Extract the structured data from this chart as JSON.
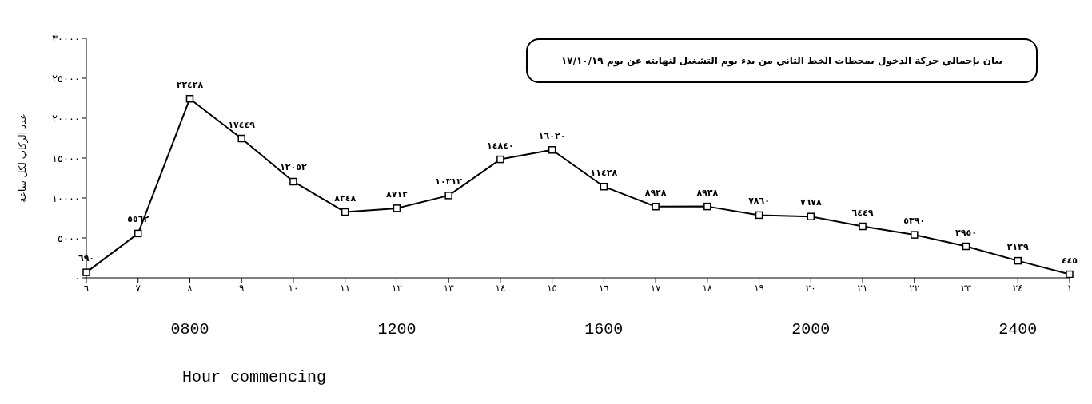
{
  "chart_data": {
    "type": "line",
    "title": "بيان بإجمالي حركة الدخول بمحطات الخط الثاني من بدء يوم التشغيل لنهايته عن يوم ١٧/١٠/١٩",
    "ylabel": "عدد الركاب لكل ساعة",
    "x2label": "Hour commencing",
    "categories": [
      "٦",
      "٧",
      "٨",
      "٩",
      "١٠",
      "١١",
      "١٢",
      "١٣",
      "١٤",
      "١٥",
      "١٦",
      "١٧",
      "١٨",
      "١٩",
      "٢٠",
      "٢١",
      "٢٢",
      "٢٣",
      "٢٤",
      "١"
    ],
    "values": [
      690,
      5562,
      22428,
      17449,
      12052,
      8248,
      8712,
      10312,
      14840,
      16020,
      11428,
      8928,
      8938,
      7860,
      7678,
      6449,
      5390,
      3950,
      2139,
      445
    ],
    "value_labels": [
      "٦٩٠",
      "٥٥٦٢",
      "٢٢٤٢٨",
      "١٧٤٤٩",
      "١٢٠٥٢",
      "٨٢٤٨",
      "٨٧١٢",
      "١٠٣١٢",
      "١٤٨٤٠",
      "١٦٠٢٠",
      "١١٤٢٨",
      "٨٩٢٨",
      "٨٩٣٨",
      "٧٨٦٠",
      "٧٦٧٨",
      "٦٤٤٩",
      "٥٣٩٠",
      "٣٩٥٠",
      "٢١٣٩",
      "٤٤٥"
    ],
    "color": "#000000",
    "marker": "square",
    "line_style": "solid",
    "ylim": [
      0,
      30000
    ],
    "yticks": [
      {
        "value": 0,
        "label": "٠"
      },
      {
        "value": 5000,
        "label": "٥٠٠٠"
      },
      {
        "value": 10000,
        "label": "١٠٠٠٠"
      },
      {
        "value": 15000,
        "label": "١٥٠٠٠"
      },
      {
        "value": 20000,
        "label": "٢٠٠٠٠"
      },
      {
        "value": 25000,
        "label": "٢٥٠٠٠"
      },
      {
        "value": 30000,
        "label": "٣٠٠٠٠"
      }
    ],
    "x2lim": [
      600,
      2500
    ],
    "x2ticks": [
      {
        "value": 800,
        "label": "0800"
      },
      {
        "value": 1200,
        "label": "1200"
      },
      {
        "value": 1600,
        "label": "1600"
      },
      {
        "value": 2000,
        "label": "2000"
      },
      {
        "value": 2400,
        "label": "2400"
      }
    ],
    "grid": false,
    "legend": false
  }
}
